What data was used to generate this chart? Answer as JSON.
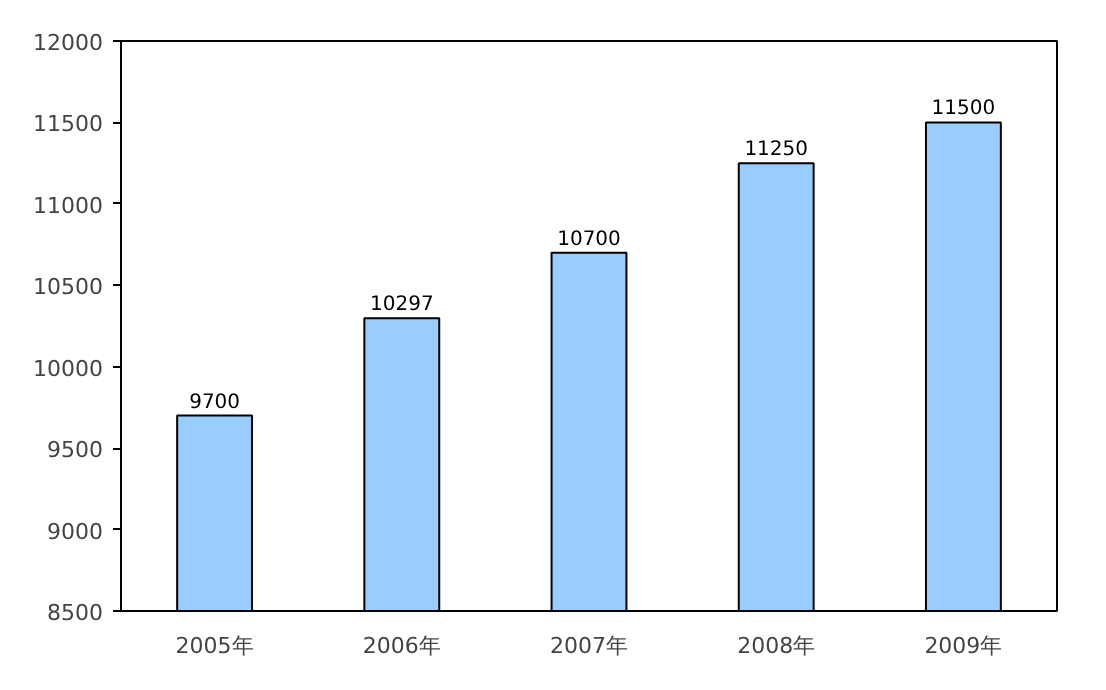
{
  "chart_data": {
    "type": "bar",
    "categories": [
      "2005年",
      "2006年",
      "2007年",
      "2008年",
      "2009年"
    ],
    "values": [
      9700,
      10297,
      10700,
      11250,
      11500
    ],
    "color": "#99ccff",
    "ylim": [
      8500,
      12000
    ],
    "yticks": [
      8500,
      9000,
      9500,
      10000,
      10500,
      11000,
      11500,
      12000
    ],
    "grid": false,
    "data_labels": true
  }
}
